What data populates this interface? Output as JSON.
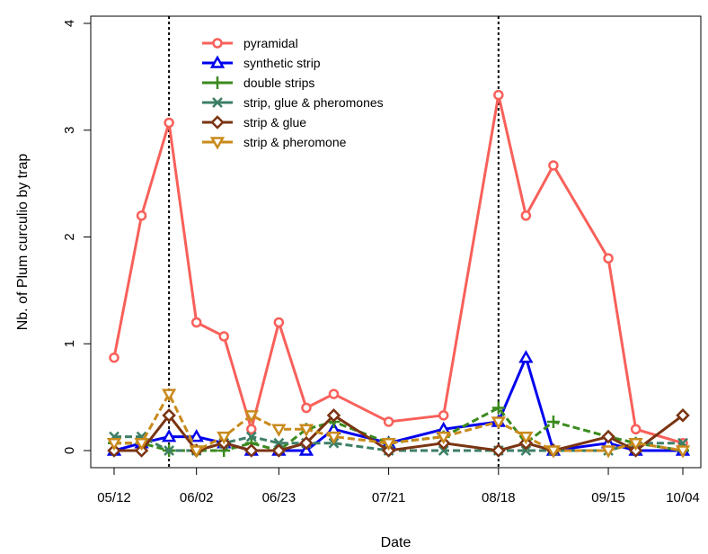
{
  "chart_data": {
    "type": "line",
    "title": "",
    "xlabel": "Date",
    "ylabel": "Nb. of Plum curculio by trap",
    "ylim": [
      0,
      4
    ],
    "yticks": [
      "0",
      "1",
      "2",
      "3",
      "4"
    ],
    "xticks": [
      "05/12",
      "06/02",
      "06/23",
      "07/21",
      "08/18",
      "09/15",
      "10/04"
    ],
    "xtick_days": [
      0,
      21,
      42,
      70,
      98,
      126,
      145
    ],
    "x_days": [
      0,
      7,
      14,
      21,
      28,
      35,
      42,
      49,
      56,
      70,
      84,
      98,
      105,
      112,
      126,
      133,
      145
    ],
    "vlines_days": [
      14,
      98
    ],
    "legend_position": "top-center",
    "grid": false,
    "series": [
      {
        "name": "pyramidal",
        "color": "#f8605a",
        "marker": "circle",
        "values": [
          0.87,
          2.2,
          3.07,
          1.2,
          1.07,
          0.2,
          1.2,
          0.4,
          0.53,
          0.27,
          0.33,
          3.33,
          2.2,
          2.67,
          1.8,
          0.2,
          0.07
        ]
      },
      {
        "name": "synthetic strip",
        "color": "#0000ee",
        "marker": "triangle-up",
        "values": [
          0.0,
          0.07,
          0.13,
          0.13,
          0.07,
          0.0,
          0.0,
          0.0,
          0.2,
          0.07,
          0.2,
          0.27,
          0.87,
          0.0,
          0.07,
          0.0,
          0.0
        ]
      },
      {
        "name": "double strips",
        "color": "#3a8a1e",
        "marker": "plus",
        "values": [
          0.07,
          0.07,
          0.0,
          0.0,
          0.0,
          0.07,
          0.0,
          0.2,
          0.27,
          0.07,
          0.13,
          0.4,
          0.07,
          0.27,
          0.13,
          0.07,
          0.0
        ]
      },
      {
        "name": "strip, glue & pheromones",
        "color": "#3e7f66",
        "marker": "cross",
        "values": [
          0.13,
          0.13,
          0.0,
          0.0,
          0.07,
          0.13,
          0.07,
          0.07,
          0.07,
          0.0,
          0.0,
          0.0,
          0.0,
          0.0,
          0.0,
          0.07,
          0.07
        ]
      },
      {
        "name": "strip & glue",
        "color": "#7a3412",
        "marker": "diamond",
        "values": [
          0.0,
          0.0,
          0.33,
          0.0,
          0.07,
          0.0,
          0.0,
          0.07,
          0.33,
          0.0,
          0.07,
          0.0,
          0.07,
          0.0,
          0.13,
          0.0,
          0.33
        ]
      },
      {
        "name": "strip & pheromone",
        "color": "#c98a1c",
        "marker": "triangle-down",
        "values": [
          0.07,
          0.07,
          0.53,
          0.0,
          0.13,
          0.33,
          0.2,
          0.2,
          0.13,
          0.07,
          0.13,
          0.27,
          0.13,
          0.0,
          0.0,
          0.07,
          0.0
        ]
      }
    ]
  }
}
